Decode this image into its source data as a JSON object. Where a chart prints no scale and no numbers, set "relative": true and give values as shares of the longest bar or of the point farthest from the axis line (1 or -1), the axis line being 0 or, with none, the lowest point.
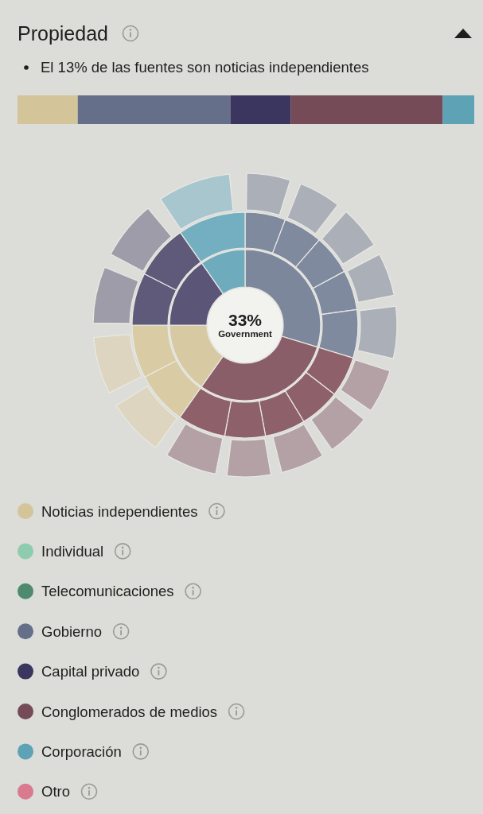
{
  "chart_data": [
    {
      "type": "bar",
      "title": "Propiedad",
      "annotations": [
        "El 13% de las fuentes son noticias independientes"
      ],
      "orientation": "horizontal",
      "stacked": true,
      "relative": true,
      "categories": [
        null
      ],
      "legend": "bottom",
      "series": [
        {
          "name": "Noticias independientes",
          "color": "#d3c49a",
          "values": [
            0.132
          ]
        },
        {
          "name": "Individual",
          "color": "#8ecbaf",
          "values": [
            null
          ]
        },
        {
          "name": "Telecomunicaciones",
          "color": "#4f8a6f",
          "values": [
            null
          ]
        },
        {
          "name": "Gobierno",
          "color": "#666f89",
          "values": [
            0.334
          ]
        },
        {
          "name": "Capital privado",
          "color": "#3a365f",
          "values": [
            0.132
          ]
        },
        {
          "name": "Conglomerados de medios",
          "color": "#754b57",
          "values": [
            0.333
          ]
        },
        {
          "name": "Corporación",
          "color": "#5ea2b5",
          "values": [
            0.069
          ]
        },
        {
          "name": "Otro",
          "color": "#d97a90",
          "values": [
            null
          ]
        }
      ]
    },
    {
      "type": "donut",
      "categories": [
        null,
        null,
        null,
        null,
        null
      ],
      "values": [
        29.7,
        30.1,
        15.2,
        15.3,
        9.7
      ],
      "colors": [
        "#7d879b",
        "#8a5e68",
        "#d7c9a2",
        "#5b5677",
        "#6eabbd"
      ],
      "annotations": [
        "33%",
        "Government"
      ]
    },
    {
      "type": "donut",
      "categories": [
        null,
        null,
        null,
        null,
        null,
        null,
        null,
        null,
        null,
        null,
        null,
        null,
        null,
        null,
        null
      ],
      "values": [
        5.8,
        5.6,
        5.7,
        5.7,
        6.9,
        5.8,
        5.8,
        5.8,
        5.8,
        6.9,
        7.6,
        7.6,
        7.5,
        7.8,
        9.7
      ],
      "colors": [
        "#808a9e",
        "#808a9e",
        "#808a9e",
        "#808a9e",
        "#808a9e",
        "#8e616a",
        "#8e616a",
        "#8e616a",
        "#8e616a",
        "#8e616a",
        "#d9cba4",
        "#d9cba4",
        "#5f5a7a",
        "#5f5a7a",
        "#74afc1"
      ]
    },
    {
      "type": "donut",
      "categories": [
        null,
        null,
        null,
        null,
        null,
        null,
        null,
        null,
        null,
        null,
        null,
        null,
        null,
        null,
        null
      ],
      "values": [
        5.8,
        5.6,
        5.7,
        5.7,
        6.9,
        5.8,
        5.8,
        5.8,
        5.8,
        6.9,
        7.6,
        7.6,
        7.5,
        7.8,
        9.7
      ],
      "colors": [
        "#aaafb8",
        "#aaafb8",
        "#aaafb8",
        "#aaafb8",
        "#aaafb8",
        "#b3a1a5",
        "#b3a1a5",
        "#b3a1a5",
        "#b3a1a5",
        "#b3a1a5",
        "#ddd5c0",
        "#ddd5c0",
        "#9e9ca8",
        "#9e9ca8",
        "#a8c6cd"
      ]
    }
  ]
}
